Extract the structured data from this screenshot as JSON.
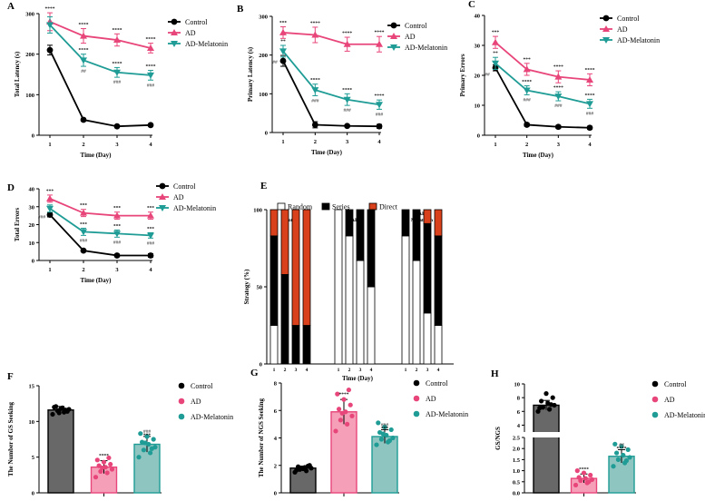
{
  "figure": {
    "colors": {
      "control": "#000000",
      "ad": "#e8457a",
      "mel": "#1e9c95",
      "bar_control": "#686868",
      "bar_ad": "#f5a0b8",
      "bar_mel": "#8ec5c1",
      "random": "#ffffff",
      "series": "#000000",
      "direct": "#d9401c"
    },
    "legend": {
      "control": "Control",
      "ad": "AD",
      "mel": "AD-Melatonin"
    }
  },
  "chart_data": [
    {
      "id": "A",
      "type": "line",
      "panel": "A",
      "ylabel": "Total Latency (s)",
      "xlabel": "Time (Day)",
      "ylim": [
        0,
        300
      ],
      "yticks": [
        0,
        100,
        200,
        300
      ],
      "xticks": [
        1,
        2,
        3,
        4
      ],
      "series": [
        {
          "name": "Control",
          "values": [
            210,
            38,
            22,
            25
          ],
          "err": [
            12,
            3,
            3,
            3
          ],
          "sig": []
        },
        {
          "name": "AD",
          "values": [
            280,
            245,
            235,
            215
          ],
          "err": [
            22,
            18,
            15,
            12
          ],
          "sig": [
            "****",
            "****",
            "****",
            "****"
          ]
        },
        {
          "name": "AD-Melatonin",
          "values": [
            272,
            185,
            155,
            148
          ],
          "err": [
            20,
            15,
            12,
            12
          ],
          "sig": [
            "",
            "****",
            "****",
            "****"
          ],
          "sig2": [
            "",
            "##",
            "###",
            "###"
          ]
        }
      ]
    },
    {
      "id": "B",
      "type": "line",
      "panel": "B",
      "ylabel": "Primary Latency (s)",
      "xlabel": "Time (Day)",
      "ylim": [
        0,
        300
      ],
      "yticks": [
        0,
        100,
        200,
        300
      ],
      "xticks": [
        1,
        2,
        3,
        4
      ],
      "series": [
        {
          "name": "Control",
          "values": [
            185,
            20,
            17,
            16
          ],
          "err": [
            14,
            8,
            3,
            5
          ],
          "sig": []
        },
        {
          "name": "AD",
          "values": [
            258,
            252,
            228,
            228
          ],
          "err": [
            15,
            20,
            18,
            20
          ],
          "sig": [
            "***",
            "****",
            "****",
            "****"
          ]
        },
        {
          "name": "AD-Melatonin",
          "values": [
            210,
            110,
            85,
            72
          ],
          "err": [
            15,
            15,
            15,
            12
          ],
          "sig": [
            "**",
            "****",
            "****",
            "****"
          ],
          "sig2": [
            "##",
            "###",
            "###",
            "###"
          ]
        }
      ]
    },
    {
      "id": "C",
      "type": "line",
      "panel": "C",
      "ylabel": "Primary Errors",
      "xlabel": "Time (Day)",
      "ylim": [
        0,
        40
      ],
      "yticks": [
        0,
        10,
        20,
        30,
        40
      ],
      "xticks": [
        1,
        2,
        3,
        4
      ],
      "series": [
        {
          "name": "Control",
          "values": [
            22.5,
            3.5,
            2.8,
            2.5
          ],
          "err": [
            1,
            0.5,
            0.5,
            0.5
          ],
          "sig": []
        },
        {
          "name": "AD",
          "values": [
            31,
            22,
            19.5,
            18.5
          ],
          "err": [
            2,
            2,
            2,
            2
          ],
          "sig": [
            "***",
            "***",
            "****",
            "****"
          ]
        },
        {
          "name": "AD-Melatonin",
          "values": [
            24,
            15,
            13,
            10.5
          ],
          "err": [
            2,
            1.5,
            1.5,
            1.5
          ],
          "sig": [
            "**",
            "****",
            "****",
            "****"
          ],
          "sig2": [
            "##",
            "###",
            "###",
            "###"
          ]
        }
      ]
    },
    {
      "id": "D",
      "type": "line",
      "panel": "D",
      "ylabel": "Total Errors",
      "xlabel": "Time (Day)",
      "ylim": [
        0,
        40
      ],
      "yticks": [
        0,
        10,
        20,
        30,
        40
      ],
      "xticks": [
        1,
        2,
        3,
        4
      ],
      "series": [
        {
          "name": "Control",
          "values": [
            25.5,
            5.5,
            2.8,
            2.8
          ],
          "err": [
            1.2,
            0.5,
            0.7,
            1
          ],
          "sig": []
        },
        {
          "name": "AD",
          "values": [
            34.5,
            26.5,
            25,
            25
          ],
          "err": [
            2,
            2,
            2,
            2
          ],
          "sig": [
            "***",
            "***",
            "***",
            "***"
          ]
        },
        {
          "name": "AD-Melatonin",
          "values": [
            29,
            16,
            15,
            14
          ],
          "err": [
            2,
            2,
            2,
            1.5
          ],
          "sig": [
            "",
            "***",
            "***",
            "***"
          ],
          "sig2": [
            "###",
            "###",
            "###",
            "###"
          ]
        }
      ]
    },
    {
      "id": "E",
      "type": "bar",
      "panel": "E",
      "stacked": true,
      "ylabel": "Strategy (%)",
      "xlabel": "Time (Day)",
      "ylim": [
        0,
        100
      ],
      "yticks": [
        0,
        50,
        100
      ],
      "legend_labels": [
        "Random",
        "Series",
        "Direct"
      ],
      "groups": [
        {
          "name": "Control",
          "days": [
            "1",
            "2",
            "3",
            "4"
          ],
          "random": [
            25,
            0,
            0,
            0
          ],
          "series": [
            58,
            58,
            25,
            25
          ],
          "direct": [
            17,
            42,
            75,
            75
          ]
        },
        {
          "name": "AD",
          "days": [
            "1",
            "2",
            "3",
            "4"
          ],
          "random": [
            100,
            83,
            67,
            50
          ],
          "series": [
            0,
            17,
            33,
            50
          ],
          "direct": [
            0,
            0,
            0,
            0
          ]
        },
        {
          "name": "AD\nMelatonin",
          "days": [
            "1",
            "2",
            "3",
            "4"
          ],
          "random": [
            83,
            67,
            33,
            25
          ],
          "series": [
            17,
            33,
            58,
            58
          ],
          "direct": [
            0,
            0,
            9,
            17
          ]
        }
      ]
    },
    {
      "id": "F",
      "type": "bar",
      "panel": "F",
      "ylabel": "The Number of GS Seeking",
      "ylim": [
        0,
        15
      ],
      "yticks": [
        0,
        5,
        10,
        15
      ],
      "bars": [
        {
          "name": "Control",
          "value": 11.6,
          "err": 0.5,
          "sig": "",
          "points": [
            11.0,
            11.3,
            11.5,
            11.7,
            11.9,
            12.1,
            11.4,
            11.8,
            12.0,
            11.6,
            11.2
          ]
        },
        {
          "name": "AD",
          "value": 3.6,
          "err": 0.9,
          "sig": "****",
          "points": [
            2.2,
            2.8,
            3.0,
            3.3,
            3.6,
            3.8,
            4.0,
            4.3,
            4.6,
            4.9,
            3.5
          ]
        },
        {
          "name": "AD-Melatonin",
          "value": 6.8,
          "err": 1.1,
          "sig": "***",
          "sig2": "###",
          "points": [
            5.0,
            5.6,
            6.0,
            6.4,
            6.8,
            7.1,
            7.5,
            7.9,
            8.3,
            6.2,
            7.0
          ]
        }
      ]
    },
    {
      "id": "G",
      "type": "bar",
      "panel": "G",
      "ylabel": "The Number of NGS Seeking",
      "ylim": [
        0,
        8
      ],
      "yticks": [
        0,
        2,
        4,
        6,
        8
      ],
      "bars": [
        {
          "name": "Control",
          "value": 1.8,
          "err": 0.15,
          "sig": "",
          "points": [
            1.5,
            1.6,
            1.7,
            1.8,
            1.85,
            1.9,
            2.0,
            1.75,
            1.65,
            1.95,
            1.8
          ]
        },
        {
          "name": "AD",
          "value": 5.9,
          "err": 0.9,
          "sig": "****",
          "points": [
            4.5,
            5.0,
            5.3,
            5.6,
            5.9,
            6.1,
            6.4,
            6.8,
            7.2,
            7.5,
            5.8
          ]
        },
        {
          "name": "AD-Melatonin",
          "value": 4.1,
          "err": 0.5,
          "sig": "***",
          "sig2": "###",
          "points": [
            3.5,
            3.7,
            3.9,
            4.0,
            4.2,
            4.4,
            4.6,
            4.8,
            5.1,
            3.8,
            4.3
          ]
        }
      ]
    },
    {
      "id": "H",
      "type": "bar",
      "panel": "H",
      "broken_axis": true,
      "ylabel": "GS/NGS",
      "ylim": [
        0,
        10
      ],
      "yticks": [
        0,
        0.5,
        1.0,
        1.5,
        2.0,
        2.5,
        4,
        6,
        8,
        10
      ],
      "bars": [
        {
          "name": "Control",
          "value": 6.9,
          "err": 0.7,
          "sig": "",
          "points": [
            6.0,
            6.3,
            6.6,
            6.9,
            7.2,
            7.5,
            8.0,
            8.6,
            6.5,
            7.0
          ]
        },
        {
          "name": "AD",
          "value": 0.65,
          "err": 0.2,
          "sig": "****",
          "points": [
            0.35,
            0.45,
            0.55,
            0.6,
            0.65,
            0.7,
            0.8,
            0.9,
            1.0,
            0.5
          ]
        },
        {
          "name": "AD-Melatonin",
          "value": 1.65,
          "err": 0.3,
          "sig": "****",
          "sig2": "##",
          "points": [
            1.2,
            1.35,
            1.5,
            1.6,
            1.7,
            1.8,
            1.95,
            2.1,
            2.2,
            1.45
          ]
        }
      ]
    }
  ]
}
